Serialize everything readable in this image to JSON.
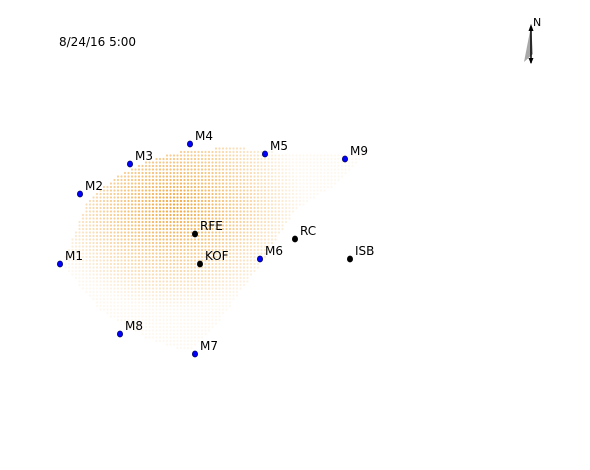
{
  "timestamp": "8/24/16 5:00",
  "north_label": "N",
  "colors": {
    "background": "#ffffff",
    "monitor_station": "#0000ff",
    "facility_station": "#000000",
    "concentration": "#f0a030"
  },
  "monitor_stations": [
    {
      "id": "M1",
      "label": "M1"
    },
    {
      "id": "M2",
      "label": "M2"
    },
    {
      "id": "M3",
      "label": "M3"
    },
    {
      "id": "M4",
      "label": "M4"
    },
    {
      "id": "M5",
      "label": "M5"
    },
    {
      "id": "M6",
      "label": "M6"
    },
    {
      "id": "M7",
      "label": "M7"
    },
    {
      "id": "M8",
      "label": "M8"
    },
    {
      "id": "M9",
      "label": "M9"
    }
  ],
  "facility_stations": [
    {
      "id": "RFE",
      "label": "RFE"
    },
    {
      "id": "KOF",
      "label": "KOF"
    },
    {
      "id": "RC",
      "label": "RC"
    },
    {
      "id": "ISB",
      "label": "ISB"
    }
  ]
}
